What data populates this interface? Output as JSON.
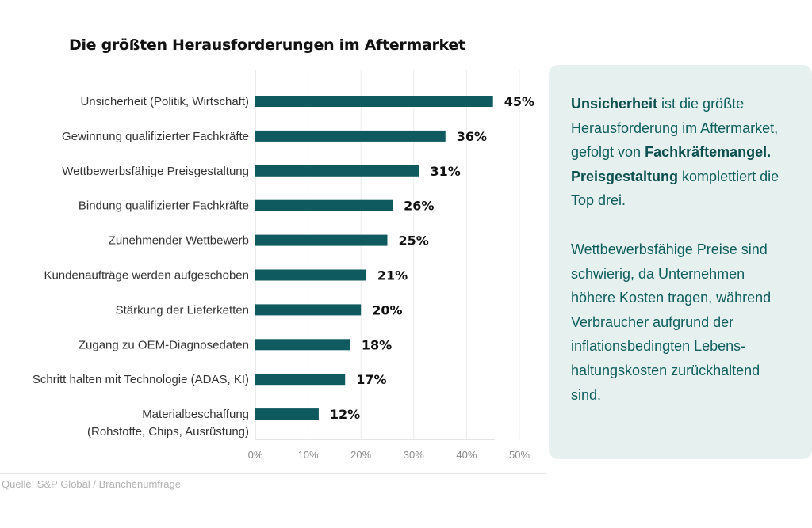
{
  "chart_data": {
    "type": "bar",
    "orientation": "horizontal",
    "title": "Die größten Herausforderungen im Aftermarket",
    "categories": [
      "Unsicherheit (Politik, Wirtschaft)",
      "Gewinnung qualifizierter Fachkräfte",
      "Wettbewerbsfähige Preisgestaltung",
      "Bindung qualifizierter Fachkräfte",
      "Zunehmender Wettbewerb",
      "Kundenaufträge werden aufgeschoben",
      "Stärkung der Lieferketten",
      "Zugang zu OEM-Diagnosedaten",
      "Schritt halten mit Technologie (ADAS, KI)",
      "Materialbeschaffung\n(Rohstoffe, Chips, Ausrüstung)"
    ],
    "values": [
      45,
      36,
      31,
      26,
      25,
      21,
      20,
      18,
      17,
      12
    ],
    "value_labels": [
      "45%",
      "36%",
      "31%",
      "26%",
      "25%",
      "21%",
      "20%",
      "18%",
      "17%",
      "12%"
    ],
    "xlim": [
      0,
      50
    ],
    "xticks": [
      "0%",
      "10%",
      "20%",
      "30%",
      "40%",
      "50%"
    ],
    "xlabel": "",
    "ylabel": "",
    "grid": true,
    "bar_color": "#0e5a5e"
  },
  "info": {
    "p1": {
      "b1": "Unsicherheit",
      "t1": " ist die größte Herausforderung im Aftermarket, gefolgt von ",
      "b2": "Fachkräftemangel. Preisgestaltung",
      "t2": " komplettiert die Top drei."
    },
    "p2": "Wettbewerbsfähige Preise sind schwierig, da Unternehmen höhere Kosten tragen, während Verbraucher aufgrund der inflationsbedingten Lebens-haltungskosten zurückhaltend sind."
  },
  "source": "Quelle: S&P Global / Branchenumfrage",
  "colors": {
    "bar": "#0e5a5e",
    "panel_bg": "#e6f1ef",
    "panel_text": "#0e5e5e"
  }
}
